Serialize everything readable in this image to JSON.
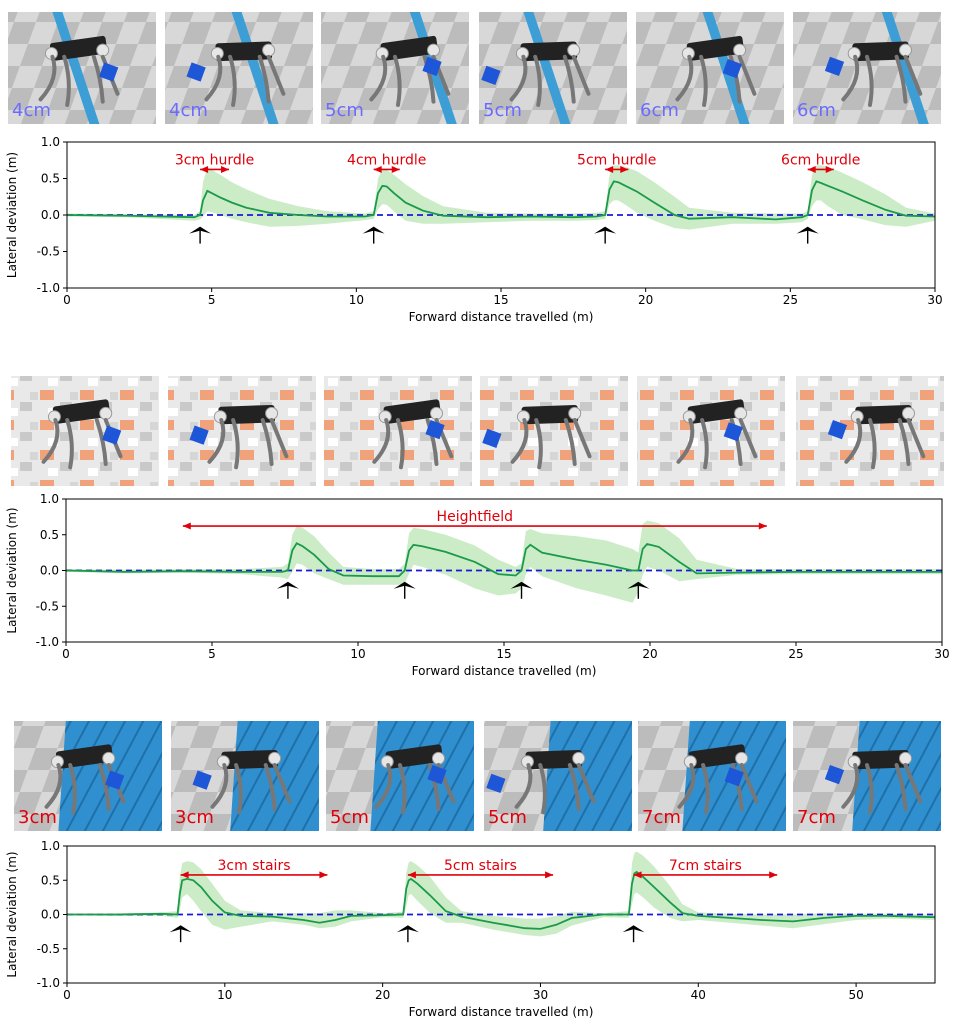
{
  "colors": {
    "mean_line": "#1a9a4a",
    "band": "#b9e6b4",
    "zero_line": "#1a1ad6",
    "annotation": "#e0000a",
    "arrow": "#000000",
    "flat_tile_light": "#d8d8d8",
    "flat_tile_dark": "#b9b9b9",
    "hurdle_bar": "#3d9ed6",
    "stairs": "#2f8fcf",
    "terrain_orange": "#f0a27a",
    "terrain_white": "#eeeeee",
    "cube": "#1e56d8",
    "robot_body": "#222222",
    "robot_leg": "#777777",
    "label_blue": "#6b6bff",
    "label_red": "#e0000a"
  },
  "panels": [
    {
      "thumbnails": [
        {
          "label": "4cm",
          "scene": "hurdle"
        },
        {
          "label": "4cm",
          "scene": "hurdle"
        },
        {
          "label": "5cm",
          "scene": "hurdle"
        },
        {
          "label": "5cm",
          "scene": "hurdle"
        },
        {
          "label": "6cm",
          "scene": "hurdle"
        },
        {
          "label": "6cm",
          "scene": "hurdle"
        }
      ]
    },
    {
      "thumbnails": [
        {
          "label": "",
          "scene": "heightfield"
        },
        {
          "label": "",
          "scene": "heightfield"
        },
        {
          "label": "",
          "scene": "heightfield"
        },
        {
          "label": "",
          "scene": "heightfield"
        },
        {
          "label": "",
          "scene": "heightfield"
        },
        {
          "label": "",
          "scene": "heightfield"
        }
      ]
    },
    {
      "thumbnails": [
        {
          "label": "3cm",
          "scene": "stairs"
        },
        {
          "label": "3cm",
          "scene": "stairs"
        },
        {
          "label": "5cm",
          "scene": "stairs"
        },
        {
          "label": "5cm",
          "scene": "stairs"
        },
        {
          "label": "7cm",
          "scene": "stairs"
        },
        {
          "label": "7cm",
          "scene": "stairs"
        }
      ]
    }
  ],
  "chart_data": [
    {
      "type": "line",
      "xlabel": "Forward distance travelled (m)",
      "ylabel": "Lateral deviation (m)",
      "xlim": [
        0,
        30
      ],
      "ylim": [
        -1.0,
        1.0
      ],
      "xticks": [
        "0",
        "5",
        "10",
        "15",
        "20",
        "25",
        "30"
      ],
      "yticks": [
        "1.0",
        "0.5",
        "0.0",
        "-0.5",
        "-1.0"
      ],
      "reference_line_y": 0.0,
      "series": [
        {
          "x": [
            0,
            2,
            4.4,
            4.6,
            4.7,
            4.85,
            5.0,
            5.3,
            5.7,
            6.2,
            7,
            8,
            9,
            10.3,
            10.6,
            10.75,
            10.9,
            11.05,
            11.3,
            11.7,
            12.3,
            13,
            14.5,
            16,
            17.5,
            18.3,
            18.6,
            18.75,
            18.9,
            19.05,
            19.3,
            19.7,
            20.3,
            21,
            21.5,
            23,
            24.5,
            25.4,
            25.6,
            25.75,
            25.9,
            26.05,
            26.3,
            26.8,
            27.5,
            28.3,
            29,
            30
          ],
          "y": [
            0,
            -0.01,
            -0.03,
            0.0,
            0.2,
            0.33,
            0.3,
            0.24,
            0.17,
            0.1,
            0.03,
            0.0,
            -0.02,
            -0.02,
            0.0,
            0.3,
            0.4,
            0.39,
            0.3,
            0.17,
            0.06,
            -0.01,
            -0.03,
            -0.02,
            -0.03,
            -0.02,
            0.0,
            0.35,
            0.46,
            0.45,
            0.4,
            0.32,
            0.17,
            0.0,
            -0.05,
            -0.03,
            -0.06,
            -0.03,
            0.0,
            0.34,
            0.46,
            0.44,
            0.4,
            0.32,
            0.2,
            0.07,
            -0.01,
            -0.02
          ],
          "band_upper": [
            0.02,
            0.01,
            0.0,
            0.05,
            0.45,
            0.65,
            0.62,
            0.55,
            0.45,
            0.35,
            0.22,
            0.12,
            0.05,
            0.02,
            0.05,
            0.5,
            0.62,
            0.62,
            0.55,
            0.42,
            0.26,
            0.12,
            0.03,
            0.02,
            0.02,
            0.03,
            0.05,
            0.55,
            0.68,
            0.68,
            0.66,
            0.6,
            0.45,
            0.25,
            0.1,
            0.03,
            0.02,
            0.02,
            0.05,
            0.55,
            0.68,
            0.68,
            0.66,
            0.58,
            0.45,
            0.28,
            0.1,
            0.02
          ],
          "band_lower": [
            -0.02,
            -0.03,
            -0.08,
            -0.06,
            -0.02,
            0.05,
            0.04,
            0.0,
            -0.05,
            -0.1,
            -0.16,
            -0.15,
            -0.12,
            -0.07,
            -0.05,
            0.08,
            0.15,
            0.14,
            0.05,
            -0.08,
            -0.12,
            -0.12,
            -0.1,
            -0.08,
            -0.08,
            -0.07,
            -0.05,
            0.15,
            0.2,
            0.2,
            0.14,
            0.03,
            -0.08,
            -0.18,
            -0.2,
            -0.12,
            -0.12,
            -0.1,
            -0.05,
            0.12,
            0.2,
            0.2,
            0.12,
            0.0,
            -0.06,
            -0.14,
            -0.16,
            -0.08
          ]
        }
      ],
      "annotations": [
        {
          "text": "3cm hurdle",
          "x_start": 4.6,
          "x_end": 5.6,
          "y": 0.72
        },
        {
          "text": "4cm hurdle",
          "x_start": 10.6,
          "x_end": 11.5,
          "y": 0.72
        },
        {
          "text": "5cm hurdle",
          "x_start": 18.6,
          "x_end": 19.4,
          "y": 0.72
        },
        {
          "text": "6cm hurdle",
          "x_start": 25.6,
          "x_end": 26.5,
          "y": 0.72
        }
      ],
      "arrows_x": [
        4.6,
        10.6,
        18.6,
        25.6
      ]
    },
    {
      "type": "line",
      "xlabel": "Forward distance travelled (m)",
      "ylabel": "Lateral deviation (m)",
      "xlim": [
        0,
        30
      ],
      "ylim": [
        -1.0,
        1.0
      ],
      "xticks": [
        "0",
        "5",
        "10",
        "15",
        "20",
        "25",
        "30"
      ],
      "yticks": [
        "1.0",
        "0.5",
        "0.0",
        "-0.5",
        "-1.0"
      ],
      "reference_line_y": 0.0,
      "series": [
        {
          "x": [
            0,
            2,
            4,
            6,
            7.4,
            7.6,
            7.75,
            7.9,
            8.1,
            8.5,
            9,
            9.5,
            10.5,
            11.4,
            11.6,
            11.75,
            11.9,
            12.2,
            13,
            14,
            14.8,
            15.4,
            15.6,
            15.75,
            15.9,
            16.3,
            17.5,
            18.5,
            19.4,
            19.6,
            19.75,
            19.9,
            20.3,
            21,
            21.6,
            23,
            25,
            27,
            30
          ],
          "y": [
            0,
            -0.02,
            -0.01,
            -0.02,
            -0.02,
            0.0,
            0.28,
            0.38,
            0.34,
            0.22,
            0.02,
            -0.07,
            -0.08,
            -0.08,
            0.0,
            0.28,
            0.36,
            0.34,
            0.26,
            0.12,
            -0.05,
            -0.07,
            0.0,
            0.3,
            0.36,
            0.25,
            0.15,
            0.08,
            0.0,
            0.0,
            0.3,
            0.37,
            0.33,
            0.12,
            -0.04,
            -0.03,
            -0.02,
            -0.02,
            -0.02
          ],
          "band_upper": [
            0.02,
            0.01,
            0.02,
            0.02,
            0.05,
            0.1,
            0.5,
            0.62,
            0.6,
            0.48,
            0.25,
            0.05,
            0.02,
            0.02,
            0.1,
            0.52,
            0.6,
            0.58,
            0.5,
            0.35,
            0.15,
            0.05,
            0.1,
            0.55,
            0.58,
            0.52,
            0.48,
            0.42,
            0.3,
            0.25,
            0.65,
            0.7,
            0.66,
            0.45,
            0.15,
            0.02,
            0.02,
            0.02,
            0.02
          ],
          "band_lower": [
            -0.02,
            -0.04,
            -0.03,
            -0.05,
            -0.1,
            -0.12,
            -0.02,
            0.1,
            0.08,
            -0.04,
            -0.12,
            -0.2,
            -0.2,
            -0.2,
            -0.18,
            -0.04,
            0.08,
            0.05,
            -0.06,
            -0.25,
            -0.35,
            -0.32,
            -0.25,
            -0.05,
            0.05,
            -0.08,
            -0.25,
            -0.35,
            -0.45,
            -0.3,
            -0.06,
            0.05,
            0.0,
            -0.15,
            -0.12,
            -0.06,
            -0.05,
            -0.05,
            -0.05
          ]
        }
      ],
      "annotations": [
        {
          "text": "Heightfield",
          "x_start": 4.0,
          "x_end": 24.0,
          "y": 0.72
        }
      ],
      "arrows_x": [
        7.6,
        11.6,
        15.6,
        19.6
      ]
    },
    {
      "type": "line",
      "xlabel": "Forward distance travelled (m)",
      "ylabel": "Lateral deviation (m)",
      "xlim": [
        0,
        55
      ],
      "ylim": [
        -1.0,
        1.0
      ],
      "xticks": [
        "0",
        "10",
        "20",
        "30",
        "40",
        "50"
      ],
      "xtick_values": [
        0,
        10,
        20,
        30,
        40,
        50
      ],
      "yticks": [
        "1.0",
        "0.5",
        "0.0",
        "-0.5",
        "-1.0"
      ],
      "reference_line_y": 0.0,
      "series": [
        {
          "x": [
            0,
            3,
            6,
            7.0,
            7.15,
            7.3,
            7.6,
            8.0,
            8.5,
            9.2,
            10,
            11,
            13,
            15,
            16,
            17,
            18,
            20,
            21.3,
            21.5,
            21.65,
            21.8,
            22.2,
            23,
            24,
            25,
            27,
            29,
            30,
            31,
            32,
            34,
            35.6,
            35.8,
            35.95,
            36.1,
            36.5,
            37.2,
            38.2,
            39,
            40,
            42,
            44,
            46,
            48,
            50,
            52,
            55
          ],
          "y": [
            0,
            0.0,
            0.01,
            0.0,
            0.3,
            0.5,
            0.52,
            0.5,
            0.4,
            0.2,
            0.03,
            -0.02,
            -0.03,
            -0.08,
            -0.12,
            -0.08,
            -0.02,
            -0.01,
            0.0,
            0.38,
            0.5,
            0.52,
            0.45,
            0.28,
            0.05,
            -0.03,
            -0.12,
            -0.2,
            -0.21,
            -0.15,
            -0.05,
            0.0,
            0.0,
            0.45,
            0.6,
            0.62,
            0.55,
            0.4,
            0.18,
            0.02,
            -0.02,
            -0.05,
            -0.08,
            -0.1,
            -0.05,
            -0.02,
            -0.02,
            -0.04
          ],
          "band_upper": [
            0.01,
            0.01,
            0.03,
            0.05,
            0.55,
            0.75,
            0.78,
            0.76,
            0.66,
            0.45,
            0.2,
            0.06,
            0.02,
            0.02,
            0.02,
            0.06,
            0.06,
            0.02,
            0.04,
            0.6,
            0.76,
            0.78,
            0.72,
            0.55,
            0.25,
            0.05,
            -0.02,
            -0.06,
            -0.06,
            -0.02,
            0.04,
            0.02,
            0.05,
            0.75,
            0.9,
            0.92,
            0.86,
            0.7,
            0.42,
            0.15,
            0.03,
            0.01,
            0.0,
            0.0,
            0.02,
            0.01,
            0.01,
            0.0
          ],
          "band_lower": [
            -0.01,
            -0.02,
            -0.02,
            -0.05,
            0.05,
            0.25,
            0.3,
            0.2,
            0.05,
            -0.15,
            -0.22,
            -0.18,
            -0.1,
            -0.15,
            -0.2,
            -0.18,
            -0.1,
            -0.04,
            -0.05,
            0.12,
            0.28,
            0.3,
            0.2,
            0.02,
            -0.12,
            -0.12,
            -0.22,
            -0.3,
            -0.32,
            -0.28,
            -0.16,
            -0.04,
            -0.05,
            0.15,
            0.3,
            0.32,
            0.25,
            0.1,
            -0.05,
            -0.1,
            -0.08,
            -0.12,
            -0.16,
            -0.2,
            -0.14,
            -0.08,
            -0.06,
            -0.08
          ]
        }
      ],
      "annotations": [
        {
          "text": "3cm stairs",
          "x_start": 7.2,
          "x_end": 16.5,
          "y": 0.68
        },
        {
          "text": "5cm stairs",
          "x_start": 21.6,
          "x_end": 30.8,
          "y": 0.68
        },
        {
          "text": "7cm stairs",
          "x_start": 35.9,
          "x_end": 45.0,
          "y": 0.68
        }
      ],
      "arrows_x": [
        7.2,
        21.6,
        35.9
      ]
    }
  ]
}
